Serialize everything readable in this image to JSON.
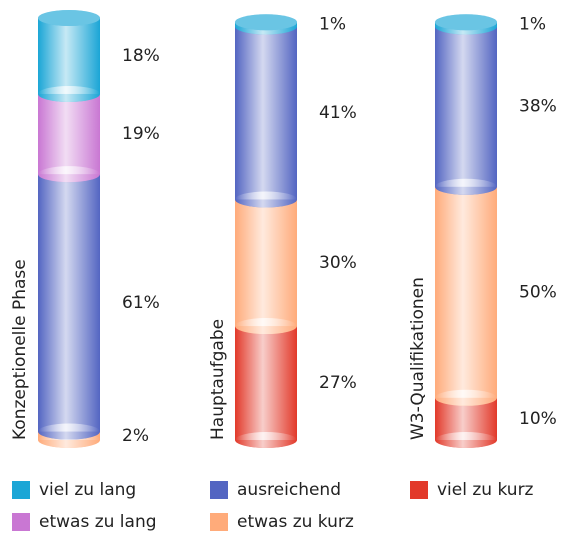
{
  "chart_data": {
    "type": "stacked-cylinder",
    "categories": [
      "Konzeptionelle Phase",
      "Hauptaufgabe",
      "W3-Qualifikationen"
    ],
    "series": [
      {
        "name": "viel zu lang",
        "color": "#1ba6d6",
        "values": [
          18,
          1,
          1
        ],
        "value_labels": [
          "18%",
          "1%",
          "1%"
        ]
      },
      {
        "name": "etwas zu lang",
        "color": "#c977d3",
        "values": [
          19,
          0,
          0
        ],
        "value_labels": [
          "19%",
          null,
          null
        ]
      },
      {
        "name": "ausreichend",
        "color": "#5365c2",
        "values": [
          61,
          41,
          38
        ],
        "value_labels": [
          "61%",
          "41%",
          "38%"
        ]
      },
      {
        "name": "etwas zu kurz",
        "color": "#ffab7a",
        "values": [
          2,
          30,
          50
        ],
        "value_labels": [
          "2%",
          "30%",
          "50%"
        ]
      },
      {
        "name": "viel zu kurz",
        "color": "#e2392a",
        "values": [
          0,
          27,
          10
        ],
        "value_labels": [
          null,
          "27%",
          "10%"
        ]
      }
    ],
    "ylim": [
      0,
      100
    ]
  }
}
